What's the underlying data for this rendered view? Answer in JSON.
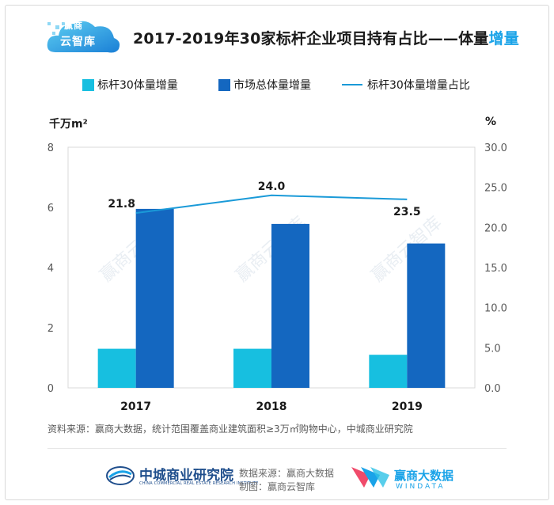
{
  "logo": {
    "line1": "赢商",
    "line2": "云智库"
  },
  "title": {
    "main": "2017-2019年30家标杆企业项目持有占比——体量",
    "highlight": "增量"
  },
  "legend": {
    "item1": "标杆30体量增量",
    "item2": "市场总体量增量",
    "item3": "标杆30体量增量占比"
  },
  "units": {
    "left": "千万m²",
    "right": "%"
  },
  "colors": {
    "bench": "#17bfe0",
    "market": "#1467c0",
    "ratio": "#1a9ad8"
  },
  "chart_data": {
    "type": "bar",
    "categories": [
      "2017",
      "2018",
      "2019"
    ],
    "series": [
      {
        "name": "标杆30体量增量",
        "axis": "left",
        "kind": "bar",
        "values": [
          1.3,
          1.3,
          1.1
        ]
      },
      {
        "name": "市场总体量增量",
        "axis": "left",
        "kind": "bar",
        "values": [
          5.95,
          5.45,
          4.8
        ]
      },
      {
        "name": "标杆30体量增量占比",
        "axis": "right",
        "kind": "line",
        "values": [
          21.8,
          24.0,
          23.5
        ]
      }
    ],
    "line_labels": [
      "21.8",
      "24.0",
      "23.5"
    ],
    "y_left": {
      "label": "千万m²",
      "ylim": [
        0,
        8
      ],
      "ticks": [
        "0",
        "2",
        "4",
        "6",
        "8"
      ]
    },
    "y_right": {
      "label": "%",
      "ylim": [
        0,
        30
      ],
      "ticks": [
        "0.0",
        "5.0",
        "10.0",
        "15.0",
        "20.0",
        "25.0",
        "30.0"
      ]
    },
    "watermark": "赢商云智库"
  },
  "source": "资料来源：赢商大数据，统计范围覆盖商业建筑面积≥3万㎡购物中心，中城商业研究院",
  "footer": {
    "org_cn": "中城商业研究院",
    "org_en": "CHINA COMMERCIAL REAL ESTATE RESEARCH INSTITUTE",
    "data_source": "数据来源：赢商大数据",
    "made_by": "制图：赢商云智库",
    "brand_cn": "赢商大数据",
    "brand_en": "WINDATA"
  }
}
